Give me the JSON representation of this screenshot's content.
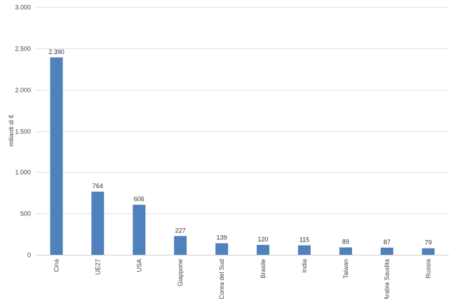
{
  "chart_data": {
    "type": "bar",
    "categories": [
      "Cina",
      "UE27",
      "USA",
      "Giappone",
      "Corea del Sud",
      "Brasile",
      "India",
      "Taiwan",
      "Arabia Saudita",
      "Russia"
    ],
    "values": [
      2390,
      764,
      606,
      227,
      139,
      120,
      115,
      89,
      87,
      79
    ],
    "value_labels": [
      "2.390",
      "764",
      "606",
      "227",
      "139",
      "120",
      "115",
      "89",
      "87",
      "79"
    ],
    "ylabel": "miliardi di €",
    "ylim": [
      0,
      3000
    ],
    "yticks": [
      0,
      500,
      1000,
      1500,
      2000,
      2500,
      3000
    ],
    "ytick_labels": [
      "0",
      "500",
      "1.000",
      "1.500",
      "2.000",
      "2.500",
      "3.000"
    ],
    "grid": true,
    "legend": "none",
    "bar_color": "#4f81bd"
  }
}
